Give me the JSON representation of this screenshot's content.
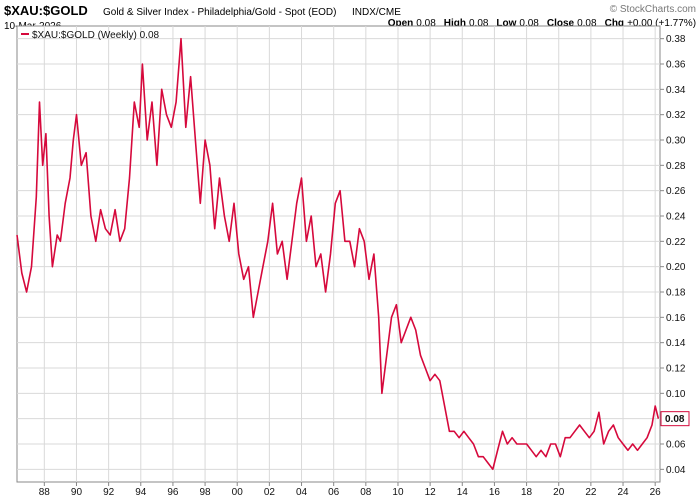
{
  "header": {
    "symbol": "$XAU:$GOLD",
    "name": "Gold & Silver Index - Philadelphia/Gold - Spot (EOD)",
    "exchange": "INDX/CME",
    "date": "10-Mar-2026",
    "brand": "© StockCharts.com",
    "ohlc": [
      {
        "label": "Open",
        "value": "0.08"
      },
      {
        "label": "High",
        "value": "0.08"
      },
      {
        "label": "Low",
        "value": "0.08"
      },
      {
        "label": "Close",
        "value": "0.08"
      },
      {
        "label": "Chg",
        "value": "+0.00 (+1.77%)"
      }
    ]
  },
  "legend": {
    "label": "$XAU:$GOLD (Weekly) 0.08"
  },
  "last_value": "0.08",
  "colors": {
    "series": "#d6093c",
    "grid": "#d9d9d9",
    "frame": "#888888"
  },
  "chart_data": {
    "type": "line",
    "title": "$XAU:$GOLD",
    "subtitle": "Gold & Silver Index - Philadelphia/Gold - Spot (EOD)",
    "xlabel": "",
    "ylabel": "",
    "xlim": [
      1986.3,
      2026.3
    ],
    "ylim": [
      0.03,
      0.39
    ],
    "x_ticks": [
      {
        "year": 1988,
        "label": "88"
      },
      {
        "year": 1990,
        "label": "90"
      },
      {
        "year": 1992,
        "label": "92"
      },
      {
        "year": 1994,
        "label": "94"
      },
      {
        "year": 1996,
        "label": "96"
      },
      {
        "year": 1998,
        "label": "98"
      },
      {
        "year": 2000,
        "label": "00"
      },
      {
        "year": 2002,
        "label": "02"
      },
      {
        "year": 2004,
        "label": "04"
      },
      {
        "year": 2006,
        "label": "06"
      },
      {
        "year": 2008,
        "label": "08"
      },
      {
        "year": 2010,
        "label": "10"
      },
      {
        "year": 2012,
        "label": "12"
      },
      {
        "year": 2014,
        "label": "14"
      },
      {
        "year": 2016,
        "label": "16"
      },
      {
        "year": 2018,
        "label": "18"
      },
      {
        "year": 2020,
        "label": "20"
      },
      {
        "year": 2022,
        "label": "22"
      },
      {
        "year": 2024,
        "label": "24"
      },
      {
        "year": 2026,
        "label": "26"
      }
    ],
    "y_ticks": [
      {
        "value": 0.04,
        "label": "0.04"
      },
      {
        "value": 0.06,
        "label": "0.06"
      },
      {
        "value": 0.08,
        "label": "0.08"
      },
      {
        "value": 0.1,
        "label": "0.10"
      },
      {
        "value": 0.12,
        "label": "0.12"
      },
      {
        "value": 0.14,
        "label": "0.14"
      },
      {
        "value": 0.16,
        "label": "0.16"
      },
      {
        "value": 0.18,
        "label": "0.18"
      },
      {
        "value": 0.2,
        "label": "0.20"
      },
      {
        "value": 0.22,
        "label": "0.22"
      },
      {
        "value": 0.24,
        "label": "0.24"
      },
      {
        "value": 0.26,
        "label": "0.26"
      },
      {
        "value": 0.28,
        "label": "0.28"
      },
      {
        "value": 0.3,
        "label": "0.30"
      },
      {
        "value": 0.32,
        "label": "0.32"
      },
      {
        "value": 0.34,
        "label": "0.34"
      },
      {
        "value": 0.36,
        "label": "0.36"
      },
      {
        "value": 0.38,
        "label": "0.38"
      }
    ],
    "grid": true,
    "legend_position": "top-left",
    "series": [
      {
        "name": "$XAU:$GOLD (Weekly) 0.08",
        "color": "#d6093c",
        "points": [
          [
            1986.3,
            0.225
          ],
          [
            1986.6,
            0.195
          ],
          [
            1986.9,
            0.18
          ],
          [
            1987.2,
            0.2
          ],
          [
            1987.5,
            0.255
          ],
          [
            1987.7,
            0.33
          ],
          [
            1987.9,
            0.28
          ],
          [
            1988.1,
            0.305
          ],
          [
            1988.3,
            0.24
          ],
          [
            1988.5,
            0.2
          ],
          [
            1988.8,
            0.225
          ],
          [
            1989.0,
            0.22
          ],
          [
            1989.3,
            0.25
          ],
          [
            1989.6,
            0.27
          ],
          [
            1989.8,
            0.3
          ],
          [
            1990.0,
            0.32
          ],
          [
            1990.3,
            0.28
          ],
          [
            1990.6,
            0.29
          ],
          [
            1990.9,
            0.24
          ],
          [
            1991.2,
            0.22
          ],
          [
            1991.5,
            0.245
          ],
          [
            1991.8,
            0.23
          ],
          [
            1992.1,
            0.225
          ],
          [
            1992.4,
            0.245
          ],
          [
            1992.7,
            0.22
          ],
          [
            1993.0,
            0.23
          ],
          [
            1993.3,
            0.27
          ],
          [
            1993.6,
            0.33
          ],
          [
            1993.9,
            0.31
          ],
          [
            1994.1,
            0.36
          ],
          [
            1994.4,
            0.3
          ],
          [
            1994.7,
            0.33
          ],
          [
            1995.0,
            0.28
          ],
          [
            1995.3,
            0.34
          ],
          [
            1995.6,
            0.32
          ],
          [
            1995.9,
            0.31
          ],
          [
            1996.2,
            0.33
          ],
          [
            1996.5,
            0.38
          ],
          [
            1996.8,
            0.31
          ],
          [
            1997.1,
            0.35
          ],
          [
            1997.4,
            0.3
          ],
          [
            1997.7,
            0.25
          ],
          [
            1998.0,
            0.3
          ],
          [
            1998.3,
            0.28
          ],
          [
            1998.6,
            0.23
          ],
          [
            1998.9,
            0.27
          ],
          [
            1999.2,
            0.24
          ],
          [
            1999.5,
            0.22
          ],
          [
            1999.8,
            0.25
          ],
          [
            2000.1,
            0.21
          ],
          [
            2000.4,
            0.19
          ],
          [
            2000.7,
            0.2
          ],
          [
            2001.0,
            0.16
          ],
          [
            2001.3,
            0.18
          ],
          [
            2001.6,
            0.2
          ],
          [
            2001.9,
            0.22
          ],
          [
            2002.2,
            0.25
          ],
          [
            2002.5,
            0.21
          ],
          [
            2002.8,
            0.22
          ],
          [
            2003.1,
            0.19
          ],
          [
            2003.4,
            0.22
          ],
          [
            2003.7,
            0.25
          ],
          [
            2004.0,
            0.27
          ],
          [
            2004.3,
            0.22
          ],
          [
            2004.6,
            0.24
          ],
          [
            2004.9,
            0.2
          ],
          [
            2005.2,
            0.21
          ],
          [
            2005.5,
            0.18
          ],
          [
            2005.8,
            0.21
          ],
          [
            2006.1,
            0.25
          ],
          [
            2006.4,
            0.26
          ],
          [
            2006.7,
            0.22
          ],
          [
            2007.0,
            0.22
          ],
          [
            2007.3,
            0.2
          ],
          [
            2007.6,
            0.23
          ],
          [
            2007.9,
            0.22
          ],
          [
            2008.2,
            0.19
          ],
          [
            2008.5,
            0.21
          ],
          [
            2008.8,
            0.16
          ],
          [
            2009.0,
            0.1
          ],
          [
            2009.3,
            0.13
          ],
          [
            2009.6,
            0.16
          ],
          [
            2009.9,
            0.17
          ],
          [
            2010.2,
            0.14
          ],
          [
            2010.5,
            0.15
          ],
          [
            2010.8,
            0.16
          ],
          [
            2011.1,
            0.15
          ],
          [
            2011.4,
            0.13
          ],
          [
            2011.7,
            0.12
          ],
          [
            2012.0,
            0.11
          ],
          [
            2012.3,
            0.115
          ],
          [
            2012.6,
            0.11
          ],
          [
            2012.9,
            0.09
          ],
          [
            2013.2,
            0.07
          ],
          [
            2013.5,
            0.07
          ],
          [
            2013.8,
            0.065
          ],
          [
            2014.1,
            0.07
          ],
          [
            2014.4,
            0.065
          ],
          [
            2014.7,
            0.06
          ],
          [
            2015.0,
            0.05
          ],
          [
            2015.3,
            0.05
          ],
          [
            2015.6,
            0.045
          ],
          [
            2015.9,
            0.04
          ],
          [
            2016.2,
            0.055
          ],
          [
            2016.5,
            0.07
          ],
          [
            2016.8,
            0.06
          ],
          [
            2017.1,
            0.065
          ],
          [
            2017.4,
            0.06
          ],
          [
            2017.7,
            0.06
          ],
          [
            2018.0,
            0.06
          ],
          [
            2018.3,
            0.055
          ],
          [
            2018.6,
            0.05
          ],
          [
            2018.9,
            0.055
          ],
          [
            2019.2,
            0.05
          ],
          [
            2019.5,
            0.06
          ],
          [
            2019.8,
            0.06
          ],
          [
            2020.1,
            0.05
          ],
          [
            2020.4,
            0.065
          ],
          [
            2020.7,
            0.065
          ],
          [
            2021.0,
            0.07
          ],
          [
            2021.3,
            0.075
          ],
          [
            2021.6,
            0.07
          ],
          [
            2021.9,
            0.065
          ],
          [
            2022.2,
            0.07
          ],
          [
            2022.5,
            0.085
          ],
          [
            2022.8,
            0.06
          ],
          [
            2023.1,
            0.07
          ],
          [
            2023.4,
            0.075
          ],
          [
            2023.7,
            0.065
          ],
          [
            2024.0,
            0.06
          ],
          [
            2024.3,
            0.055
          ],
          [
            2024.6,
            0.06
          ],
          [
            2024.9,
            0.055
          ],
          [
            2025.2,
            0.06
          ],
          [
            2025.5,
            0.065
          ],
          [
            2025.8,
            0.075
          ],
          [
            2026.0,
            0.09
          ],
          [
            2026.2,
            0.08
          ]
        ]
      }
    ]
  }
}
